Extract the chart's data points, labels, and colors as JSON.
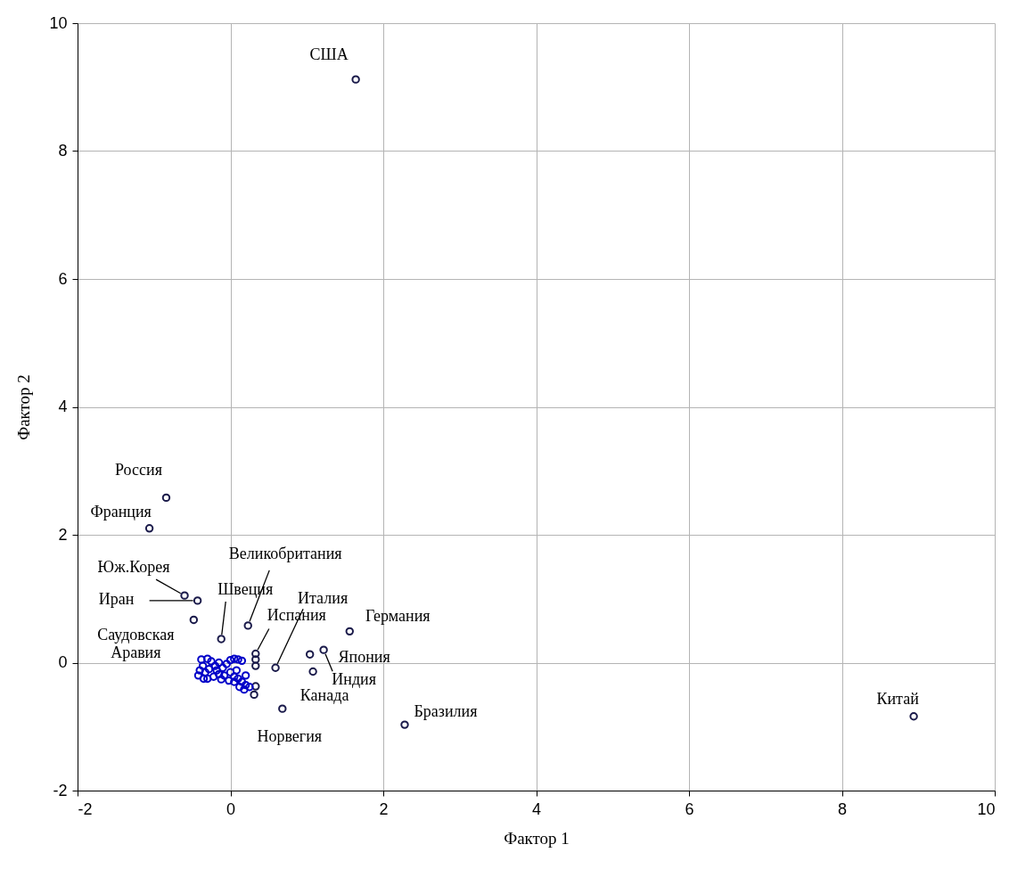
{
  "chart_data": {
    "type": "scatter",
    "xlabel": "Фактор 1",
    "ylabel": "Фактор 2",
    "xlim": [
      -2,
      10
    ],
    "ylim": [
      -2,
      10
    ],
    "xticks": [
      -2,
      0,
      2,
      4,
      6,
      8,
      10
    ],
    "yticks": [
      -2,
      0,
      2,
      4,
      6,
      8,
      10
    ],
    "grid": true,
    "legend": false,
    "marker": "circle",
    "series": [
      {
        "color": "#1a1a4a",
        "x": [
          1.64,
          8.94,
          -0.84,
          -1.06,
          -0.6,
          -0.43,
          -0.48,
          -0.12,
          0.23,
          0.33,
          0.59,
          1.56,
          1.04,
          1.22,
          1.08,
          0.68,
          2.28
        ],
        "values": [
          9.12,
          -0.84,
          2.58,
          2.1,
          1.05,
          0.97,
          0.67,
          0.37,
          0.58,
          0.14,
          -0.08,
          0.49,
          0.13,
          0.2,
          -0.14,
          -0.72,
          -0.97
        ]
      },
      {
        "color": "#1a1a4a",
        "x": [
          0.33,
          0.33,
          0.33,
          0.31
        ],
        "values": [
          0.05,
          -0.05,
          -0.37,
          -0.5
        ]
      },
      {
        "color": "#0000c8",
        "x": [
          -0.38,
          -0.3,
          -0.25,
          -0.36,
          -0.4,
          -0.42,
          -0.33,
          -0.28,
          -0.2,
          -0.15,
          -0.1,
          -0.05,
          0,
          0.05,
          0.1,
          0.15,
          -0.3,
          -0.22,
          -0.15,
          -0.08,
          0,
          0.05,
          0.1,
          0.15,
          0.2,
          0.25,
          0.12,
          0.05,
          -0.02,
          -0.12,
          0.18,
          0.08,
          -0.18,
          0.2,
          -0.35
        ],
        "values": [
          0.05,
          0.06,
          0.02,
          -0.05,
          -0.12,
          -0.2,
          -0.15,
          -0.1,
          -0.05,
          0,
          -0.08,
          -0.02,
          0.04,
          0.06,
          0.05,
          0.03,
          -0.25,
          -0.22,
          -0.18,
          -0.2,
          -0.15,
          -0.22,
          -0.25,
          -0.3,
          -0.35,
          -0.38,
          -0.38,
          -0.3,
          -0.28,
          -0.26,
          -0.42,
          -0.12,
          -0.12,
          -0.2,
          -0.25
        ]
      }
    ],
    "annotations": [
      {
        "text": "США",
        "x": 1.64,
        "y": 9.12
      },
      {
        "text": "Китай",
        "x": 8.94,
        "y": -0.84
      },
      {
        "text": "Россия",
        "x": -0.84,
        "y": 2.58
      },
      {
        "text": "Франция",
        "x": -1.06,
        "y": 2.1
      },
      {
        "text": "Юж.Корея",
        "x": -0.6,
        "y": 1.05
      },
      {
        "text": "Иран",
        "x": -0.43,
        "y": 0.97
      },
      {
        "text": "Саудовская Аравия",
        "x": -0.48,
        "y": 0.67
      },
      {
        "text": "Швеция",
        "x": -0.12,
        "y": 0.37
      },
      {
        "text": "Великобритания",
        "x": 0.23,
        "y": 0.58
      },
      {
        "text": "Испания",
        "x": 0.33,
        "y": 0.14
      },
      {
        "text": "Италия",
        "x": 0.59,
        "y": -0.08
      },
      {
        "text": "Германия",
        "x": 1.56,
        "y": 0.49
      },
      {
        "text": "Япония",
        "x": 1.04,
        "y": 0.13
      },
      {
        "text": "Индия",
        "x": 1.22,
        "y": 0.2
      },
      {
        "text": "Канада",
        "x": 1.08,
        "y": -0.14
      },
      {
        "text": "Норвегия",
        "x": 0.68,
        "y": -0.72
      },
      {
        "text": "Бразилия",
        "x": 2.28,
        "y": -0.97
      }
    ]
  }
}
